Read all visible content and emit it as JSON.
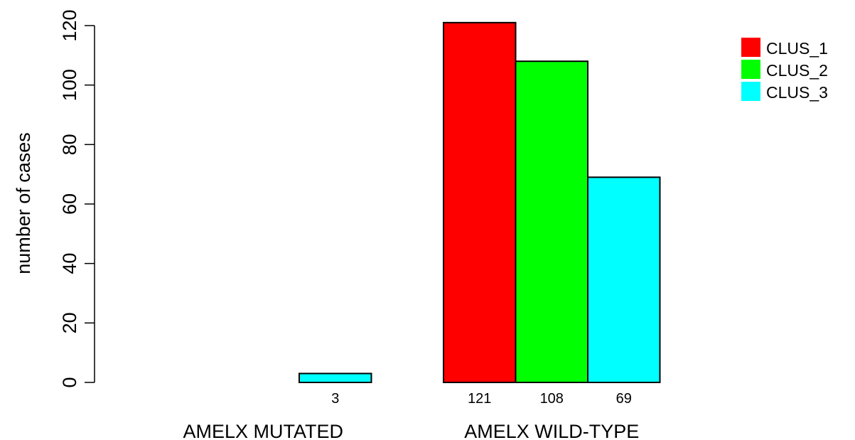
{
  "chart_data": {
    "type": "bar",
    "title": "",
    "ylabel": "number of cases",
    "xlabel": "",
    "ylim": [
      0,
      120
    ],
    "yticks": [
      0,
      20,
      40,
      60,
      80,
      100,
      120
    ],
    "categories": [
      "AMELX MUTATED",
      "AMELX WILD-TYPE"
    ],
    "series": [
      {
        "name": "CLUS_1",
        "color": "#ff0000",
        "values": [
          0,
          121
        ],
        "labels": [
          "",
          "121"
        ]
      },
      {
        "name": "CLUS_2",
        "color": "#00ff00",
        "values": [
          0,
          108
        ],
        "labels": [
          "",
          "108"
        ]
      },
      {
        "name": "CLUS_3",
        "color": "#00ffff",
        "values": [
          3,
          69
        ],
        "labels": [
          "3",
          "69"
        ]
      }
    ],
    "legend_position": "top-right",
    "grid": false
  }
}
